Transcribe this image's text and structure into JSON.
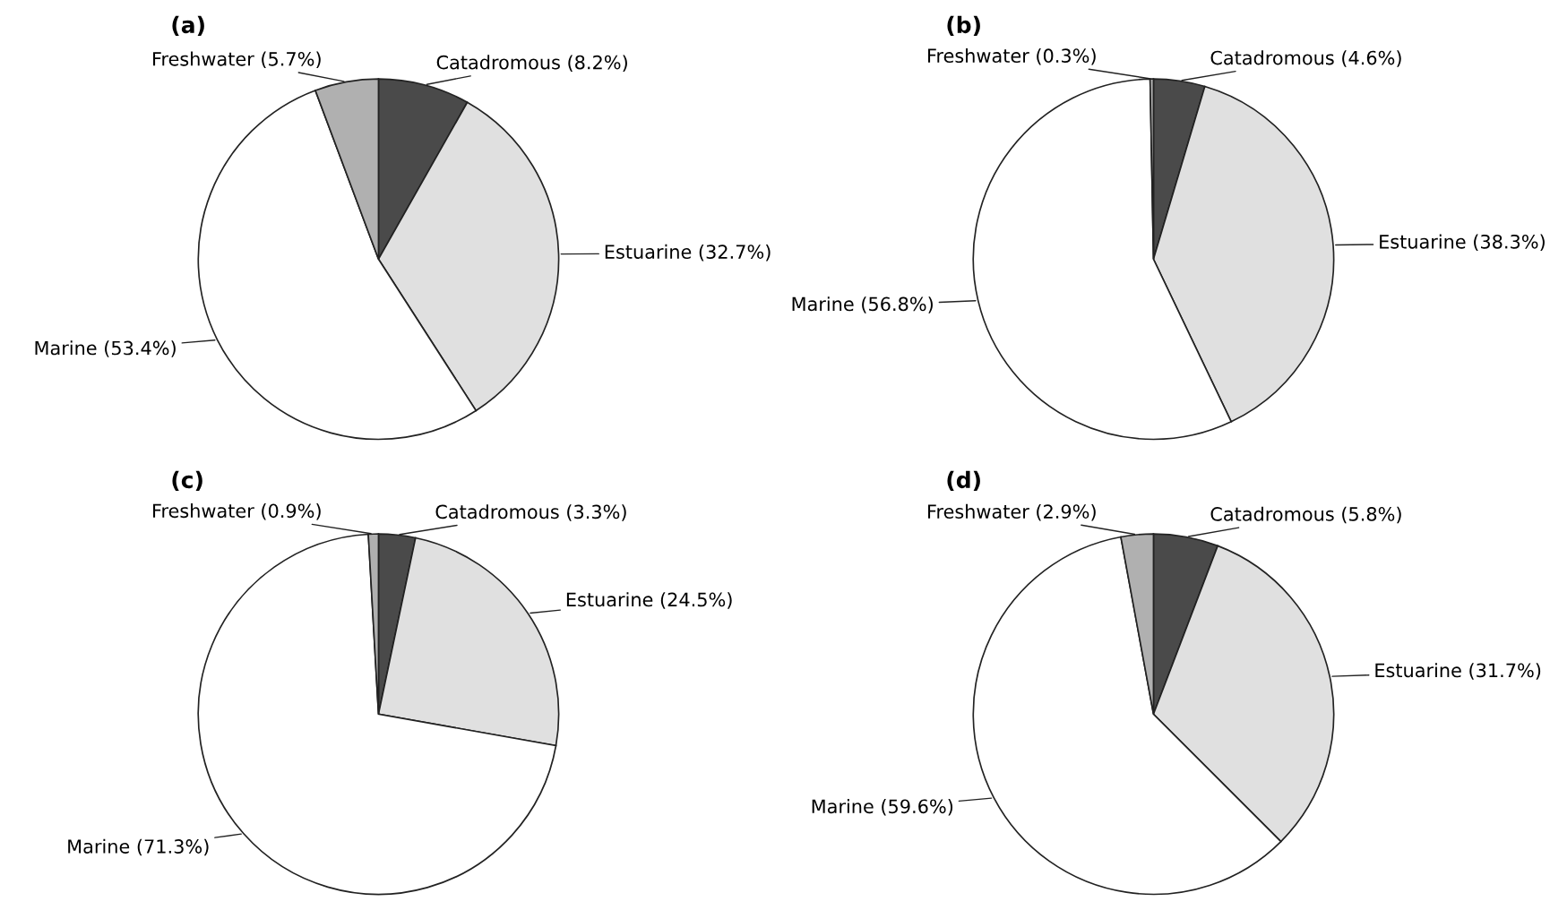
{
  "chart_data": [
    {
      "type": "pie",
      "title": "(a)",
      "categories": [
        "Catadromous (8.2%)",
        "Estuarine (32.7%)",
        "Marine (53.4%)",
        "Freshwater (5.7%)"
      ],
      "values": [
        8.2,
        32.7,
        53.4,
        5.7
      ],
      "colors": [
        "#4a4a4a",
        "#e0e0e0",
        "#ffffff",
        "#b0b0b0"
      ]
    },
    {
      "type": "pie",
      "title": "(b)",
      "categories": [
        "Catadromous (4.6%)",
        "Estuarine (38.3%)",
        "Marine (56.8%)",
        "Freshwater (0.3%)"
      ],
      "values": [
        4.6,
        38.3,
        56.8,
        0.3
      ],
      "colors": [
        "#4a4a4a",
        "#e0e0e0",
        "#ffffff",
        "#b0b0b0"
      ]
    },
    {
      "type": "pie",
      "title": "(c)",
      "categories": [
        "Catadromous (3.3%)",
        "Estuarine (24.5%)",
        "Marine (71.3%)",
        "Freshwater (0.9%)"
      ],
      "values": [
        3.3,
        24.5,
        71.3,
        0.9
      ],
      "colors": [
        "#4a4a4a",
        "#e0e0e0",
        "#ffffff",
        "#b0b0b0"
      ]
    },
    {
      "type": "pie",
      "title": "(d)",
      "categories": [
        "Catadromous (5.8%)",
        "Estuarine (31.7%)",
        "Marine (59.6%)",
        "Freshwater (2.9%)"
      ],
      "values": [
        5.8,
        31.7,
        59.6,
        2.9
      ],
      "colors": [
        "#4a4a4a",
        "#e0e0e0",
        "#ffffff",
        "#b0b0b0"
      ]
    }
  ]
}
